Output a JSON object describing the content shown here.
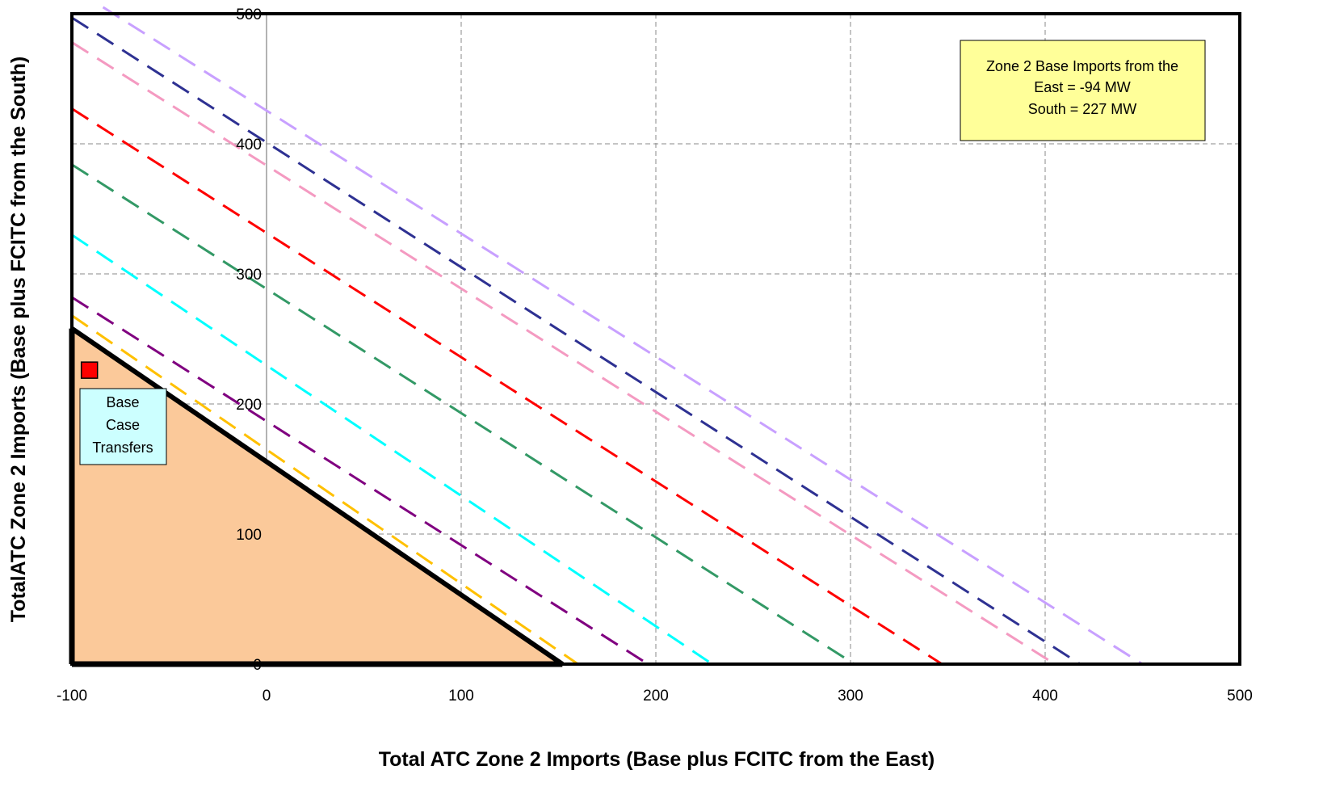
{
  "chart_data": {
    "type": "line",
    "title": "",
    "xlabel": "Total ATC Zone 2 Imports (Base plus FCITC from the East)",
    "ylabel": "TotalATC Zone 2 Imports (Base plus FCITC from the South)",
    "xlim": [
      -100,
      500
    ],
    "ylim": [
      0,
      500
    ],
    "x_ticks": [
      "-100",
      "0",
      "100",
      "200",
      "300",
      "400",
      "500"
    ],
    "y_ticks": [
      "0",
      "100",
      "200",
      "300",
      "400",
      "500"
    ],
    "grid": true,
    "series": [
      {
        "color": "#c8a0ff",
        "style": "dashed",
        "points": [
          [
            -84,
            505
          ],
          [
            450,
            0
          ]
        ]
      },
      {
        "color": "#2e3192",
        "style": "dashed",
        "points": [
          [
            -100,
            497
          ],
          [
            418,
            0
          ]
        ]
      },
      {
        "color": "#f49ac1",
        "style": "dashed",
        "points": [
          [
            -100,
            478
          ],
          [
            405,
            0
          ]
        ]
      },
      {
        "color": "#ff0000",
        "style": "dashed",
        "points": [
          [
            -100,
            427
          ],
          [
            347,
            0
          ]
        ]
      },
      {
        "color": "#339966",
        "style": "dashed",
        "points": [
          [
            -100,
            384
          ],
          [
            302,
            0
          ]
        ]
      },
      {
        "color": "#00ffff",
        "style": "dashed",
        "points": [
          [
            -100,
            330
          ],
          [
            229,
            0
          ]
        ]
      },
      {
        "color": "#800080",
        "style": "dashed",
        "points": [
          [
            -100,
            282
          ],
          [
            196,
            0
          ]
        ]
      },
      {
        "color": "#ffc000",
        "style": "dashed",
        "points": [
          [
            -100,
            268
          ],
          [
            160,
            0
          ]
        ]
      },
      {
        "color": "#000000",
        "style": "solid",
        "points": [
          [
            -100,
            258
          ],
          [
            152,
            0
          ]
        ]
      }
    ],
    "feasible_region": {
      "fill": "#fbc99a",
      "vertices": [
        [
          -100,
          0
        ],
        [
          -100,
          258
        ],
        [
          152,
          0
        ]
      ]
    },
    "base_case_point": {
      "x": -91,
      "y": 226,
      "color": "#ff0000"
    },
    "annotations": {
      "info_box": [
        "Zone 2 Base Imports from the",
        "East = -94 MW",
        "South = 227 MW"
      ],
      "base_case_label": [
        "Base",
        "Case",
        "Transfers"
      ]
    },
    "colors": {
      "info_box_fill": "#ffff99",
      "label_fill": "#ccffff",
      "region_fill": "#fbc99a"
    }
  }
}
